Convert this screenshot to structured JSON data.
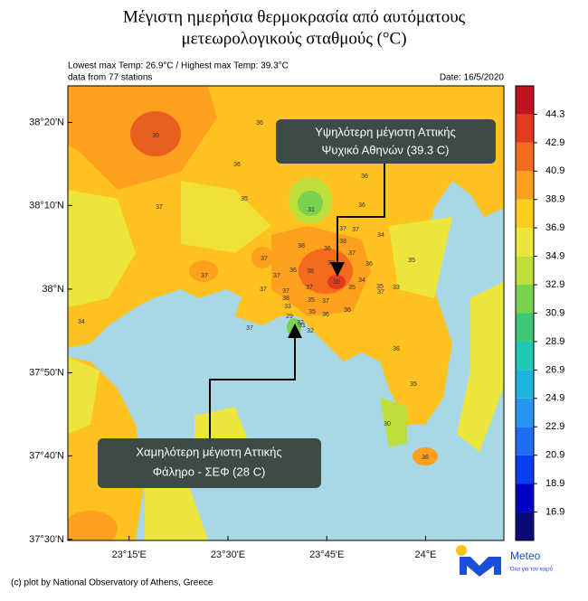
{
  "header": {
    "title_lines": [
      "Μέγιστη ημερήσια θερμοκρασία από αυτόματους",
      "μετεωρολογικούς σταθμούς (°C)"
    ],
    "stats": "Lowest max Temp: 26.9°C / Highest max Temp: 39.3°C",
    "stations_note": "data from 77 stations",
    "date": "Date: 16/5/2020"
  },
  "map": {
    "lon_ticks": [
      {
        "value": 23.25,
        "label": "23°15'E"
      },
      {
        "value": 23.5,
        "label": "23°30'E"
      },
      {
        "value": 23.75,
        "label": "23°45'E"
      },
      {
        "value": 24,
        "label": "24°E"
      }
    ],
    "lat_ticks": [
      {
        "value": 38.333,
        "label": "38°20'N"
      },
      {
        "value": 38.167,
        "label": "38°10'N"
      },
      {
        "value": 38,
        "label": "38°N"
      },
      {
        "value": 37.833,
        "label": "37°50'N"
      },
      {
        "value": 37.667,
        "label": "37°40'N"
      },
      {
        "value": 37.5,
        "label": "37°30'N"
      }
    ],
    "lonlim": [
      23.095,
      24.198
    ],
    "latlim": [
      37.498,
      38.406
    ],
    "stations": [
      39,
      36,
      36,
      35,
      37,
      31,
      36,
      36,
      34,
      37,
      38,
      37,
      36,
      38,
      37,
      37,
      36,
      38,
      38,
      37,
      36,
      37,
      37,
      37,
      38,
      37,
      39,
      35,
      34,
      35,
      37,
      33,
      35,
      37,
      36,
      36,
      35,
      33,
      29,
      32,
      32,
      31,
      35,
      34,
      36,
      35,
      30,
      36,
      37
    ],
    "annotations": {
      "highest": [
        "Υψηλότερη μέγιστη Αττικής",
        "Ψυχικό Αθηνών (39.3 C)"
      ],
      "lowest": [
        "Χαμηλότερη μέγιστη Αττικής",
        "Φάληρο - ΣΕΦ (28 C)"
      ]
    }
  },
  "colorbar": {
    "labels": [
      16.9,
      18.9,
      20.9,
      22.9,
      24.9,
      26.9,
      28.9,
      30.9,
      32.9,
      34.9,
      36.9,
      38.9,
      40.9,
      42.9,
      44.3
    ],
    "colors": [
      "#0a0a78",
      "#0000c0",
      "#0a3cf0",
      "#1e6ef5",
      "#2896f0",
      "#1eb4dc",
      "#20c8b4",
      "#3cc878",
      "#78d250",
      "#bede3c",
      "#ece63c",
      "#ffcd1e",
      "#ffa01e",
      "#f46a1e",
      "#e43a1e",
      "#be1420"
    ]
  },
  "footer": {
    "credit": "(c) plot by National Observatory of Athens, Greece",
    "logo": "Meteo",
    "slogan": "Όλα για τον καιρό"
  }
}
